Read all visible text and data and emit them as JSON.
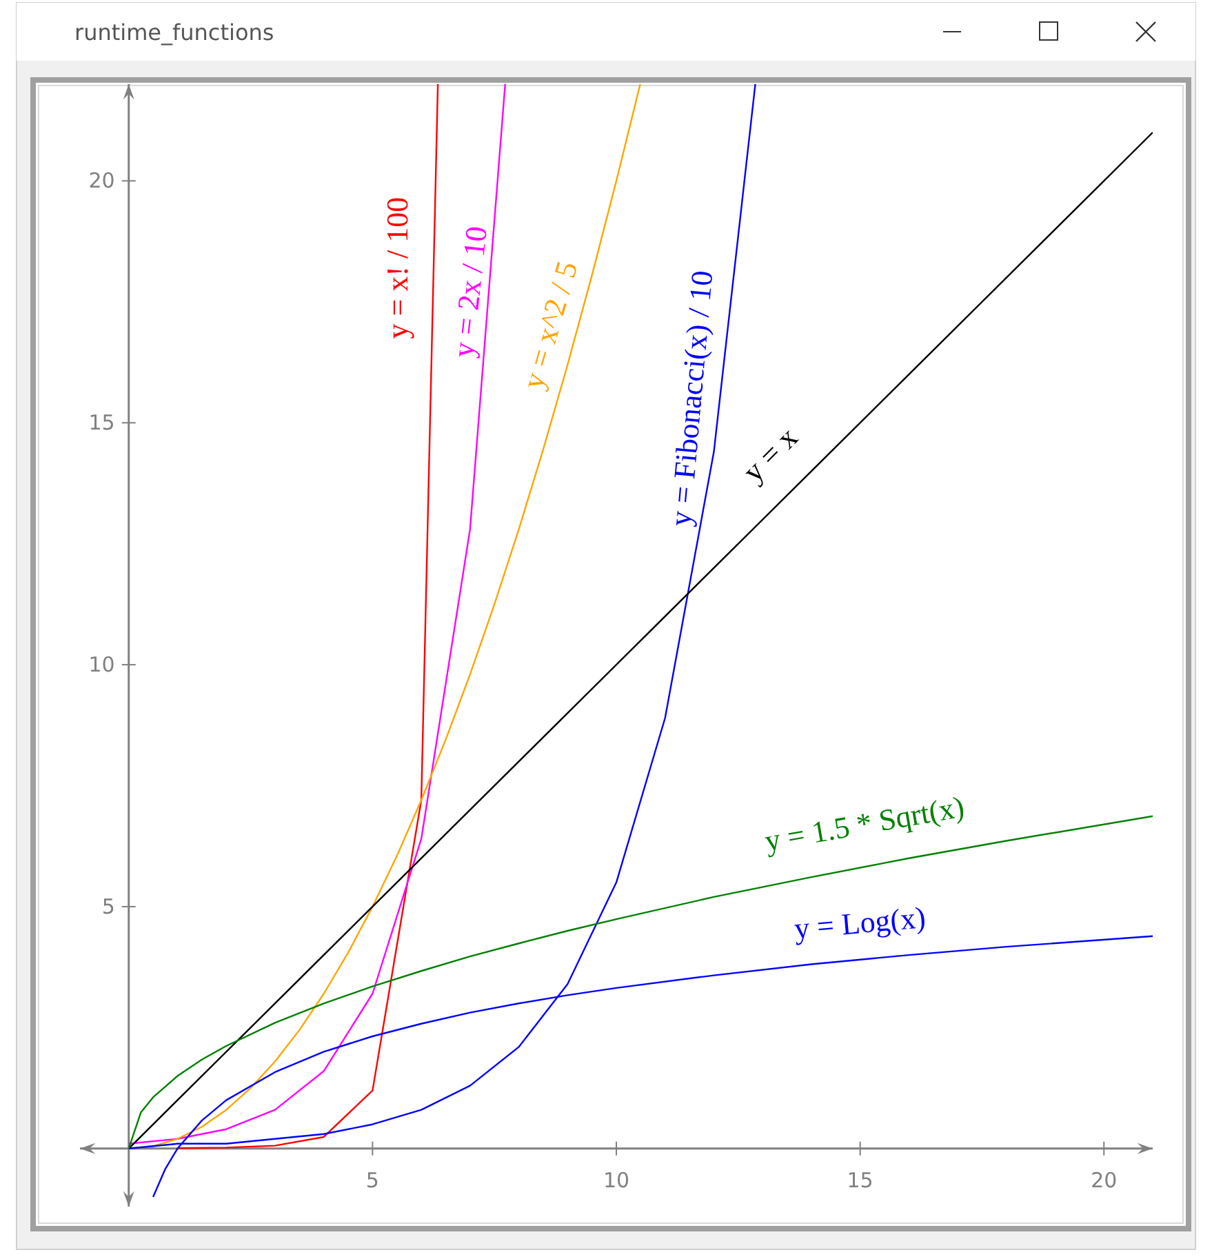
{
  "chart_data": {
    "type": "line",
    "title": "runtime_functions",
    "xlim": [
      -1,
      21
    ],
    "ylim": [
      -1.2,
      22
    ],
    "xticks": [
      5,
      10,
      15,
      20
    ],
    "yticks": [
      5,
      10,
      15,
      20
    ],
    "series": [
      {
        "name": "y = x! / 100",
        "color": "#ff0000",
        "x": [
          1,
          2,
          3,
          4,
          5,
          6,
          6.34
        ],
        "values": [
          0.01,
          0.02,
          0.06,
          0.24,
          1.2,
          7.2,
          22
        ]
      },
      {
        "name": "y = 2x / 10",
        "color": "#ff00ff",
        "x": [
          0,
          1,
          2,
          3,
          4,
          5,
          6,
          7,
          7.72
        ],
        "values": [
          0.1,
          0.2,
          0.4,
          0.8,
          1.6,
          3.2,
          6.4,
          12.8,
          22
        ]
      },
      {
        "name": "y = x^2 / 5",
        "color": "#ffa500",
        "x": [
          0,
          0.5,
          1,
          1.5,
          2,
          2.5,
          3,
          3.5,
          4,
          4.5,
          5,
          5.5,
          6,
          6.5,
          7,
          7.5,
          8,
          8.5,
          9,
          9.5,
          10,
          10.49
        ],
        "values": [
          0,
          0.05,
          0.2,
          0.45,
          0.8,
          1.25,
          1.8,
          2.45,
          3.2,
          4.05,
          5,
          6.05,
          7.2,
          8.45,
          9.8,
          11.25,
          12.8,
          14.45,
          16.2,
          18.05,
          20,
          22
        ]
      },
      {
        "name": "y = Fibonacci(x) / 10",
        "color": "#0000ff",
        "x": [
          0,
          1,
          2,
          3,
          4,
          5,
          6,
          7,
          8,
          9,
          10,
          11,
          12,
          12.85
        ],
        "values": [
          0,
          0.1,
          0.1,
          0.2,
          0.3,
          0.5,
          0.8,
          1.3,
          2.1,
          3.4,
          5.5,
          8.9,
          14.4,
          22
        ]
      },
      {
        "name": "y = x",
        "color": "#000000",
        "x": [
          0,
          21
        ],
        "values": [
          0,
          21
        ]
      },
      {
        "name": "y = 1.5 * Sqrt(x)",
        "color": "#008000",
        "x": [
          0,
          0.25,
          0.5,
          1,
          1.5,
          2,
          3,
          4,
          5,
          6,
          7,
          8,
          9,
          10,
          12,
          14,
          16,
          18,
          21
        ],
        "values": [
          0,
          0.75,
          1.06,
          1.5,
          1.84,
          2.12,
          2.6,
          3,
          3.35,
          3.67,
          3.97,
          4.24,
          4.5,
          4.74,
          5.2,
          5.61,
          6,
          6.36,
          6.87
        ]
      },
      {
        "name": "y = Log(x)",
        "color": "#0000ff",
        "x": [
          0.5,
          0.75,
          1,
          1.5,
          2,
          3,
          4,
          5,
          6,
          7,
          8,
          9,
          10,
          12,
          14,
          16,
          18,
          21
        ],
        "values": [
          -1,
          -0.42,
          0,
          0.58,
          1,
          1.58,
          2,
          2.32,
          2.58,
          2.81,
          3,
          3.17,
          3.32,
          3.58,
          3.81,
          4,
          4.17,
          4.39
        ]
      }
    ]
  }
}
